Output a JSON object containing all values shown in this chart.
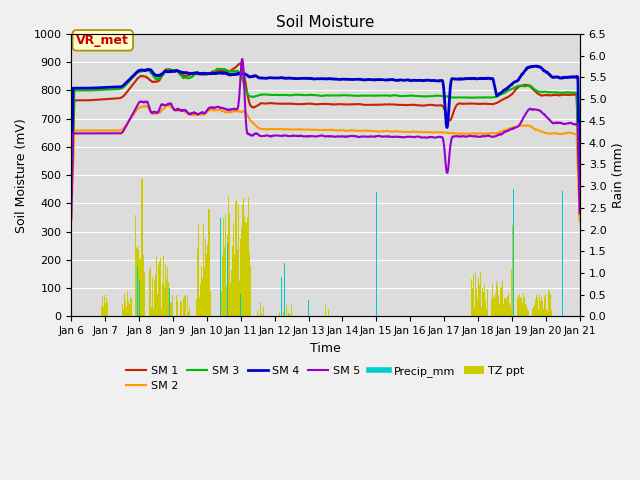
{
  "title": "Soil Moisture",
  "xlabel": "Time",
  "ylabel_left": "Soil Moisture (mV)",
  "ylabel_right": "Rain (mm)",
  "ylim_left": [
    0,
    1000
  ],
  "ylim_right": [
    0,
    6.5
  ],
  "yticks_left": [
    0,
    100,
    200,
    300,
    400,
    500,
    600,
    700,
    800,
    900,
    1000
  ],
  "yticks_right": [
    0.0,
    0.5,
    1.0,
    1.5,
    2.0,
    2.5,
    3.0,
    3.5,
    4.0,
    4.5,
    5.0,
    5.5,
    6.0,
    6.5
  ],
  "xtick_labels": [
    "Jan 6",
    "Jan 7",
    "Jan 8",
    "Jan 9",
    "Jan 10",
    "Jan 11",
    "Jan 12",
    "Jan 13",
    "Jan 14",
    "Jan 15",
    "Jan 16",
    "Jan 17",
    "Jan 18",
    "Jan 19",
    "Jan 20",
    "Jan 21"
  ],
  "annotation_box": "VR_met",
  "annotation_box_bg": "#ffffcc",
  "annotation_box_fc": "#cc0000",
  "background_color": "#dcdcdc",
  "fig_bg": "#f0f0f0",
  "lines": {
    "SM1": {
      "color": "#cc2200",
      "lw": 1.5
    },
    "SM2": {
      "color": "#ff9900",
      "lw": 1.5
    },
    "SM3": {
      "color": "#00bb00",
      "lw": 1.5
    },
    "SM4": {
      "color": "#0000cc",
      "lw": 2.0
    },
    "SM5": {
      "color": "#9900cc",
      "lw": 1.5
    }
  },
  "precip_color": "#00cccc",
  "tz_ppt_color": "#cccc00",
  "legend_labels": [
    "SM 1",
    "SM 2",
    "SM 3",
    "SM 4",
    "SM 5",
    "Precip_mm",
    "TZ ppt"
  ],
  "legend_colors": [
    "#cc2200",
    "#ff9900",
    "#00bb00",
    "#0000cc",
    "#9900cc",
    "#00cccc",
    "#cccc00"
  ]
}
